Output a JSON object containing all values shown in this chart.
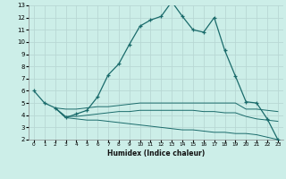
{
  "xlabel": "Humidex (Indice chaleur)",
  "bg_color": "#cceee8",
  "line_color": "#1a6b6b",
  "grid_color": "#b8d8d4",
  "xlim": [
    -0.5,
    23.5
  ],
  "ylim": [
    2,
    13
  ],
  "xticks": [
    0,
    1,
    2,
    3,
    4,
    5,
    6,
    7,
    8,
    9,
    10,
    11,
    12,
    13,
    14,
    15,
    16,
    17,
    18,
    19,
    20,
    21,
    22,
    23
  ],
  "yticks": [
    2,
    3,
    4,
    5,
    6,
    7,
    8,
    9,
    10,
    11,
    12,
    13
  ],
  "line1_x": [
    0,
    1,
    2,
    3,
    4,
    5,
    6,
    7,
    8,
    9,
    10,
    11,
    12,
    13,
    14,
    15,
    16,
    17,
    18,
    19,
    20,
    21,
    22,
    23
  ],
  "line1_y": [
    6.0,
    5.0,
    4.6,
    3.8,
    4.1,
    4.4,
    5.5,
    7.3,
    8.2,
    9.8,
    11.3,
    11.8,
    12.1,
    13.3,
    12.1,
    11.0,
    10.8,
    12.0,
    9.3,
    7.2,
    5.1,
    5.0,
    3.7,
    2.0
  ],
  "line2_x": [
    2,
    3,
    4,
    5,
    6,
    7,
    8,
    9,
    10,
    11,
    12,
    13,
    14,
    15,
    16,
    17,
    18,
    19,
    20,
    21,
    22,
    23
  ],
  "line2_y": [
    4.6,
    4.5,
    4.5,
    4.6,
    4.7,
    4.7,
    4.8,
    4.9,
    5.0,
    5.0,
    5.0,
    5.0,
    5.0,
    5.0,
    5.0,
    5.0,
    5.0,
    5.0,
    4.5,
    4.5,
    4.4,
    4.3
  ],
  "line3_x": [
    2,
    3,
    4,
    5,
    6,
    7,
    8,
    9,
    10,
    11,
    12,
    13,
    14,
    15,
    16,
    17,
    18,
    19,
    20,
    21,
    22,
    23
  ],
  "line3_y": [
    4.6,
    3.9,
    3.9,
    4.0,
    4.1,
    4.2,
    4.3,
    4.3,
    4.4,
    4.4,
    4.4,
    4.4,
    4.4,
    4.4,
    4.3,
    4.3,
    4.2,
    4.2,
    3.9,
    3.7,
    3.6,
    3.5
  ],
  "line4_x": [
    2,
    3,
    4,
    5,
    6,
    7,
    8,
    9,
    10,
    11,
    12,
    13,
    14,
    15,
    16,
    17,
    18,
    19,
    20,
    21,
    22,
    23
  ],
  "line4_y": [
    4.6,
    3.8,
    3.7,
    3.6,
    3.6,
    3.5,
    3.4,
    3.3,
    3.2,
    3.1,
    3.0,
    2.9,
    2.8,
    2.8,
    2.7,
    2.6,
    2.6,
    2.5,
    2.5,
    2.4,
    2.2,
    2.0
  ]
}
